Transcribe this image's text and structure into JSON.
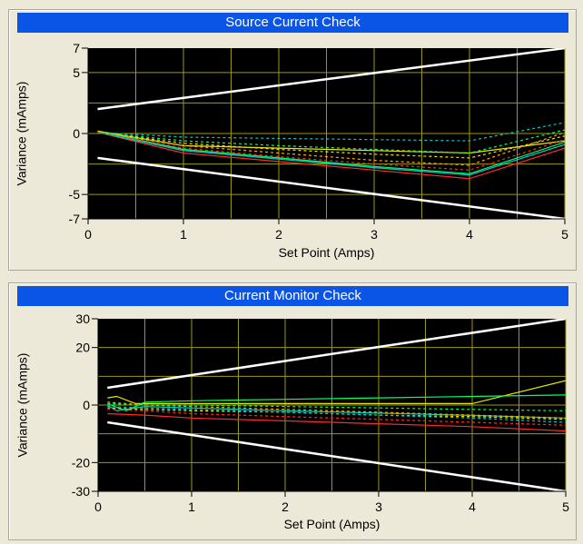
{
  "chart_data": [
    {
      "type": "line",
      "title": "Source Current Check",
      "xlabel": "Set Point (Amps)",
      "ylabel": "Variance (mAmps)",
      "xlim": [
        0,
        5
      ],
      "ylim": [
        -7,
        7
      ],
      "xticks": [
        0,
        1,
        2,
        3,
        4,
        5
      ],
      "yticks": [
        7,
        5,
        0,
        -5,
        -7
      ],
      "x_grid": [
        0.5,
        1,
        1.5,
        2,
        2.5,
        3,
        3.5,
        4,
        4.5,
        5
      ],
      "y_grid": [
        5,
        2.5,
        0,
        -2.5,
        -5
      ],
      "grid": true,
      "background": "#000000",
      "grid_color": "#9a9a12",
      "series": [
        {
          "color": "#ffffff",
          "dash": false,
          "width": 2.5,
          "x": [
            0.1,
            5
          ],
          "y": [
            2.0,
            7.0
          ]
        },
        {
          "color": "#ffffff",
          "dash": false,
          "width": 2.5,
          "x": [
            0.1,
            5
          ],
          "y": [
            -2.0,
            -7.0
          ]
        },
        {
          "color": "#ff2a2a",
          "dash": false,
          "width": 1.2,
          "x": [
            0.1,
            1,
            2,
            3,
            4,
            5
          ],
          "y": [
            0.1,
            -1.6,
            -2.3,
            -3.0,
            -3.7,
            -1.2
          ]
        },
        {
          "color": "#00cccc",
          "dash": false,
          "width": 1.2,
          "x": [
            0.1,
            1,
            2,
            3,
            4,
            5
          ],
          "y": [
            0.1,
            -1.4,
            -2.1,
            -2.8,
            -3.4,
            -0.9
          ]
        },
        {
          "color": "#00ff66",
          "dash": false,
          "width": 1.2,
          "x": [
            0.1,
            1,
            2,
            3,
            4,
            5
          ],
          "y": [
            0.2,
            -1.3,
            -2.0,
            -2.7,
            -3.3,
            -0.7
          ]
        },
        {
          "color": "#e8e800",
          "dash": false,
          "width": 1.2,
          "x": [
            0.1,
            1,
            2,
            3,
            4,
            5
          ],
          "y": [
            0.2,
            -1.0,
            -1.2,
            -1.4,
            -1.6,
            -0.6
          ]
        },
        {
          "color": "#00cccc",
          "dash": true,
          "width": 1.2,
          "x": [
            0.1,
            1,
            2,
            3,
            4,
            5
          ],
          "y": [
            0.1,
            -0.3,
            -0.4,
            -0.5,
            -0.6,
            0.9
          ]
        },
        {
          "color": "#ffaa00",
          "dash": true,
          "width": 1.2,
          "x": [
            0.1,
            1,
            2,
            3,
            4,
            5
          ],
          "y": [
            0.1,
            -1.0,
            -1.6,
            -2.2,
            -2.6,
            0.1
          ]
        },
        {
          "color": "#e8e800",
          "dash": true,
          "width": 1.2,
          "x": [
            0.1,
            1,
            2,
            3,
            4,
            5
          ],
          "y": [
            0.1,
            -0.8,
            -1.3,
            -1.7,
            -2.0,
            -0.2
          ]
        },
        {
          "color": "#00ff66",
          "dash": true,
          "width": 1.2,
          "x": [
            0.1,
            1,
            2,
            3,
            4,
            5
          ],
          "y": [
            0.1,
            -0.6,
            -1.0,
            -1.3,
            -1.6,
            0.3
          ]
        },
        {
          "color": "#ff2a2a",
          "dash": true,
          "width": 1.2,
          "x": [
            0.1,
            1,
            2,
            3,
            4,
            5
          ],
          "y": [
            0.1,
            -1.2,
            -1.9,
            -2.5,
            -3.0,
            -0.5
          ]
        }
      ]
    },
    {
      "type": "line",
      "title": "Current Monitor Check",
      "xlabel": "Set Point (Amps)",
      "ylabel": "Variance (mAmps)",
      "xlim": [
        0,
        5
      ],
      "ylim": [
        -30,
        30
      ],
      "xticks": [
        0,
        1,
        2,
        3,
        4,
        5
      ],
      "yticks": [
        30,
        20,
        0,
        -20,
        -30
      ],
      "x_grid": [
        0.5,
        1,
        1.5,
        2,
        2.5,
        3,
        3.5,
        4,
        4.5,
        5
      ],
      "y_grid": [
        20,
        10,
        0,
        -10,
        -20
      ],
      "grid": true,
      "background": "#000000",
      "grid_color": "#9a9a12",
      "series": [
        {
          "color": "#ffffff",
          "dash": false,
          "width": 2.5,
          "x": [
            0.1,
            5
          ],
          "y": [
            6.0,
            30.0
          ]
        },
        {
          "color": "#ffffff",
          "dash": false,
          "width": 2.5,
          "x": [
            0.1,
            5
          ],
          "y": [
            -6.0,
            -30.0
          ]
        },
        {
          "color": "#e8e800",
          "dash": false,
          "width": 1.2,
          "x": [
            0.1,
            0.2,
            0.4,
            1,
            2,
            3,
            4,
            5
          ],
          "y": [
            2.5,
            3.0,
            0.5,
            0.5,
            0.5,
            0.5,
            0.5,
            8.5
          ]
        },
        {
          "color": "#00ff66",
          "dash": false,
          "width": 1.2,
          "x": [
            0.1,
            0.3,
            0.5,
            1,
            2,
            3,
            4,
            5
          ],
          "y": [
            0.5,
            -2.0,
            1.0,
            1.5,
            2.0,
            2.5,
            3.0,
            3.5
          ]
        },
        {
          "color": "#ff2a2a",
          "dash": false,
          "width": 1.2,
          "x": [
            0.1,
            0.5,
            1,
            2,
            3,
            4,
            5
          ],
          "y": [
            -3.0,
            -3.5,
            -4.5,
            -5.5,
            -6.5,
            -7.5,
            -9.0
          ]
        },
        {
          "color": "#00cccc",
          "dash": false,
          "width": 1.2,
          "x": [
            0.1,
            0.2,
            0.5,
            1,
            2,
            3,
            4,
            5
          ],
          "y": [
            0.0,
            -2.0,
            -0.5,
            -1.0,
            -2.0,
            -2.8,
            -3.6,
            -4.5
          ]
        },
        {
          "color": "#ffaa00",
          "dash": true,
          "width": 1.2,
          "x": [
            0.1,
            0.5,
            1,
            2,
            3,
            4,
            5
          ],
          "y": [
            1.0,
            0.0,
            -0.5,
            -1.5,
            -2.5,
            -3.5,
            -4.5
          ]
        },
        {
          "color": "#e8e800",
          "dash": true,
          "width": 1.2,
          "x": [
            0.1,
            0.5,
            1,
            2,
            3,
            4,
            5
          ],
          "y": [
            -1.0,
            -1.5,
            -2.0,
            -2.5,
            -3.5,
            -4.0,
            -5.0
          ]
        },
        {
          "color": "#00ff66",
          "dash": true,
          "width": 1.2,
          "x": [
            0.1,
            0.5,
            1,
            2,
            3,
            4,
            5
          ],
          "y": [
            0.5,
            0.0,
            0.0,
            -0.5,
            -1.0,
            -1.5,
            -2.0
          ]
        },
        {
          "color": "#00cccc",
          "dash": true,
          "width": 1.2,
          "x": [
            0.1,
            0.5,
            1,
            2,
            3,
            4,
            5
          ],
          "y": [
            -0.5,
            -1.0,
            -1.5,
            -2.5,
            -3.5,
            -4.5,
            -6.0
          ]
        },
        {
          "color": "#ff2a2a",
          "dash": true,
          "width": 1.2,
          "x": [
            0.1,
            0.5,
            1,
            2,
            3,
            4,
            5
          ],
          "y": [
            -1.5,
            -2.0,
            -3.0,
            -4.0,
            -5.0,
            -6.0,
            -7.0
          ]
        }
      ]
    }
  ]
}
